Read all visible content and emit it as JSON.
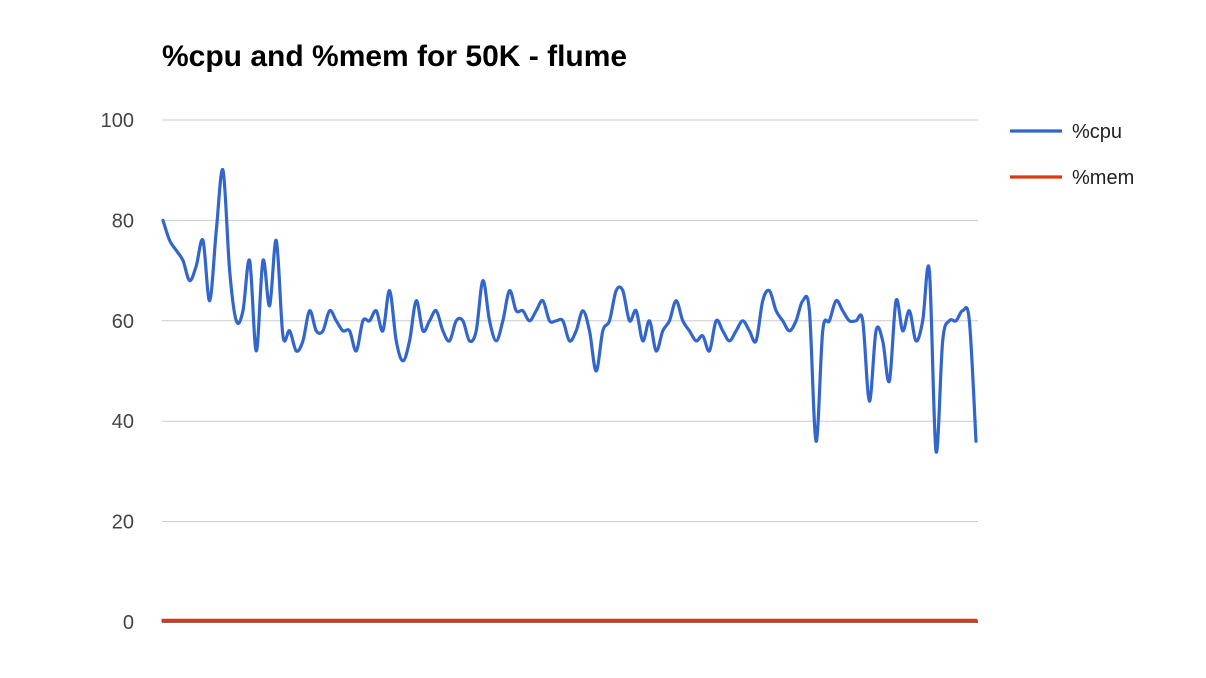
{
  "chart_data": {
    "type": "line",
    "title": "%cpu and %mem for 50K - flume",
    "xlabel": "",
    "ylabel": "",
    "ylim": [
      0,
      100
    ],
    "yticks": [
      0,
      20,
      40,
      60,
      80,
      100
    ],
    "grid": true,
    "legend": "right",
    "series": [
      {
        "name": "%cpu",
        "color": "#3366cc",
        "values": [
          80,
          76,
          74,
          72,
          68,
          71,
          76,
          64,
          78,
          90,
          70,
          60,
          62,
          72,
          54,
          72,
          63,
          76,
          57,
          58,
          54,
          56,
          62,
          58,
          58,
          62,
          60,
          58,
          58,
          54,
          60,
          60,
          62,
          58,
          66,
          56,
          52,
          56,
          64,
          58,
          60,
          62,
          58,
          56,
          60,
          60,
          56,
          58,
          68,
          60,
          56,
          60,
          66,
          62,
          62,
          60,
          62,
          64,
          60,
          60,
          60,
          56,
          58,
          62,
          58,
          50,
          58,
          60,
          66,
          66,
          60,
          62,
          56,
          60,
          54,
          58,
          60,
          64,
          60,
          58,
          56,
          57,
          54,
          60,
          58,
          56,
          58,
          60,
          58,
          56,
          64,
          66,
          62,
          60,
          58,
          60,
          64,
          62,
          36,
          58,
          60,
          64,
          62,
          60,
          60,
          60,
          44,
          58,
          56,
          48,
          64,
          58,
          62,
          56,
          60,
          70,
          34,
          56,
          60,
          60,
          62,
          60,
          36
        ]
      },
      {
        "name": "%mem",
        "color": "#dc3912",
        "values": [
          0.3,
          0.3,
          0.3,
          0.3,
          0.3,
          0.3,
          0.3,
          0.3,
          0.3,
          0.3,
          0.3,
          0.3,
          0.3,
          0.3,
          0.3,
          0.3,
          0.3,
          0.3,
          0.3,
          0.3,
          0.3,
          0.3,
          0.3,
          0.3,
          0.3,
          0.3,
          0.3,
          0.3,
          0.3,
          0.3,
          0.3,
          0.3,
          0.3,
          0.3,
          0.3,
          0.3,
          0.3,
          0.3,
          0.3,
          0.3,
          0.3,
          0.3,
          0.3,
          0.3,
          0.3,
          0.3,
          0.3,
          0.3,
          0.3,
          0.3,
          0.3,
          0.3,
          0.3,
          0.3,
          0.3,
          0.3,
          0.3,
          0.3,
          0.3,
          0.3,
          0.3,
          0.3,
          0.3,
          0.3,
          0.3,
          0.3,
          0.3,
          0.3,
          0.3,
          0.3,
          0.3,
          0.3,
          0.3,
          0.3,
          0.3,
          0.3,
          0.3,
          0.3,
          0.3,
          0.3,
          0.3,
          0.3,
          0.3,
          0.3,
          0.3,
          0.3,
          0.3,
          0.3,
          0.3,
          0.3,
          0.3,
          0.3,
          0.3,
          0.3,
          0.3,
          0.3,
          0.3,
          0.3,
          0.3,
          0.3,
          0.3,
          0.3,
          0.3,
          0.3,
          0.3,
          0.3,
          0.3,
          0.3,
          0.3,
          0.3,
          0.3,
          0.3,
          0.3,
          0.3,
          0.3,
          0.3,
          0.3,
          0.3,
          0.3,
          0.3,
          0.3,
          0.3,
          0.3
        ]
      }
    ]
  }
}
